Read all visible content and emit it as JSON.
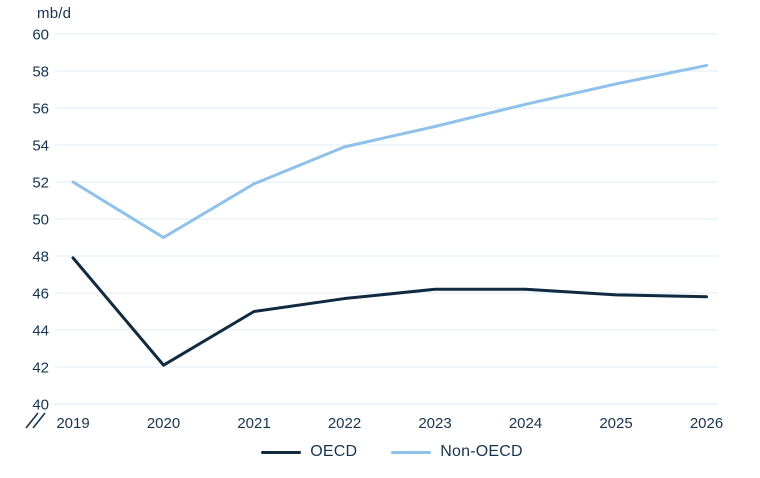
{
  "chart_data": {
    "type": "line",
    "title": "",
    "unit_label": "mb/d",
    "categories": [
      "2019",
      "2020",
      "2021",
      "2022",
      "2023",
      "2024",
      "2025",
      "2026"
    ],
    "series": [
      {
        "name": "OECD",
        "color": "#102a40",
        "values": [
          47.9,
          42.1,
          45.0,
          45.7,
          46.2,
          46.2,
          45.9,
          45.8
        ]
      },
      {
        "name": "Non-OECD",
        "color": "#8fc1ea",
        "values": [
          52.0,
          49.0,
          51.9,
          53.9,
          55.0,
          56.2,
          57.3,
          58.3
        ]
      }
    ],
    "ylim": [
      40,
      60
    ],
    "ytick_step": 2,
    "yticks": [
      "60",
      "58",
      "56",
      "54",
      "52",
      "50",
      "48",
      "46",
      "44",
      "42",
      "40"
    ],
    "grid": true,
    "grid_color": "#dcebf7",
    "axis_break": true,
    "legend_position": "bottom",
    "text_color": "#18344f",
    "background": "#ffffff"
  }
}
